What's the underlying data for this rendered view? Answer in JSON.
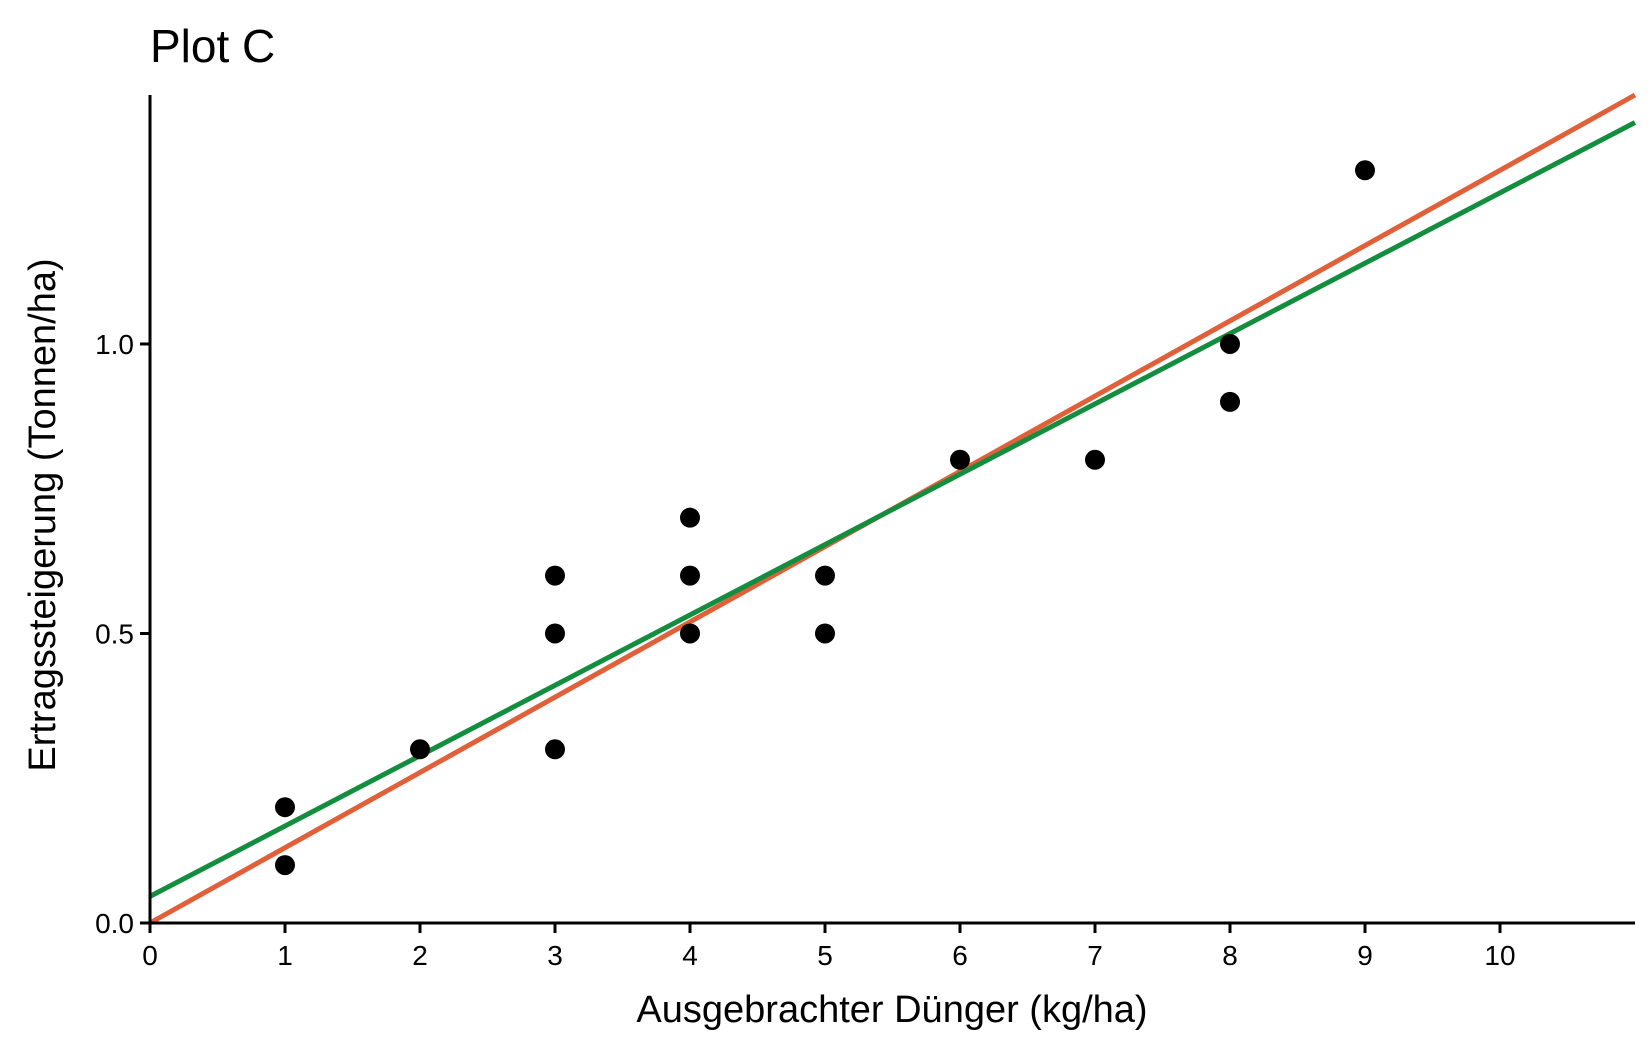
{
  "chart_data": {
    "type": "scatter",
    "title": "Plot C",
    "xlabel": "Ausgebrachter Dünger (kg/ha)",
    "ylabel": "Ertragssteigerung (Tonnen/ha)",
    "xlim": [
      0,
      11
    ],
    "ylim": [
      0,
      1.43
    ],
    "xticks": [
      0,
      1,
      2,
      3,
      4,
      5,
      6,
      7,
      8,
      9,
      10
    ],
    "xtick_labels": [
      "0",
      "1",
      "2",
      "3",
      "4",
      "5",
      "6",
      "7",
      "8",
      "9",
      "10"
    ],
    "yticks": [
      0.0,
      0.5,
      1.0
    ],
    "ytick_labels": [
      "0.0",
      "0.5",
      "1.0"
    ],
    "grid": false,
    "points": [
      {
        "x": 1,
        "y": 0.2
      },
      {
        "x": 1,
        "y": 0.1
      },
      {
        "x": 2,
        "y": 0.3
      },
      {
        "x": 3,
        "y": 0.6
      },
      {
        "x": 3,
        "y": 0.5
      },
      {
        "x": 3,
        "y": 0.3
      },
      {
        "x": 4,
        "y": 0.7
      },
      {
        "x": 4,
        "y": 0.6
      },
      {
        "x": 4,
        "y": 0.5
      },
      {
        "x": 5,
        "y": 0.6
      },
      {
        "x": 5,
        "y": 0.5
      },
      {
        "x": 6,
        "y": 0.8
      },
      {
        "x": 7,
        "y": 0.8
      },
      {
        "x": 8,
        "y": 1.0
      },
      {
        "x": 8,
        "y": 0.9
      },
      {
        "x": 9,
        "y": 1.3
      }
    ],
    "point_color": "#000000",
    "lines": [
      {
        "intercept": 0.0,
        "slope": 0.13,
        "color": "#E0603A"
      },
      {
        "intercept": 0.046,
        "slope": 0.1215,
        "color": "#138D3E"
      }
    ]
  }
}
